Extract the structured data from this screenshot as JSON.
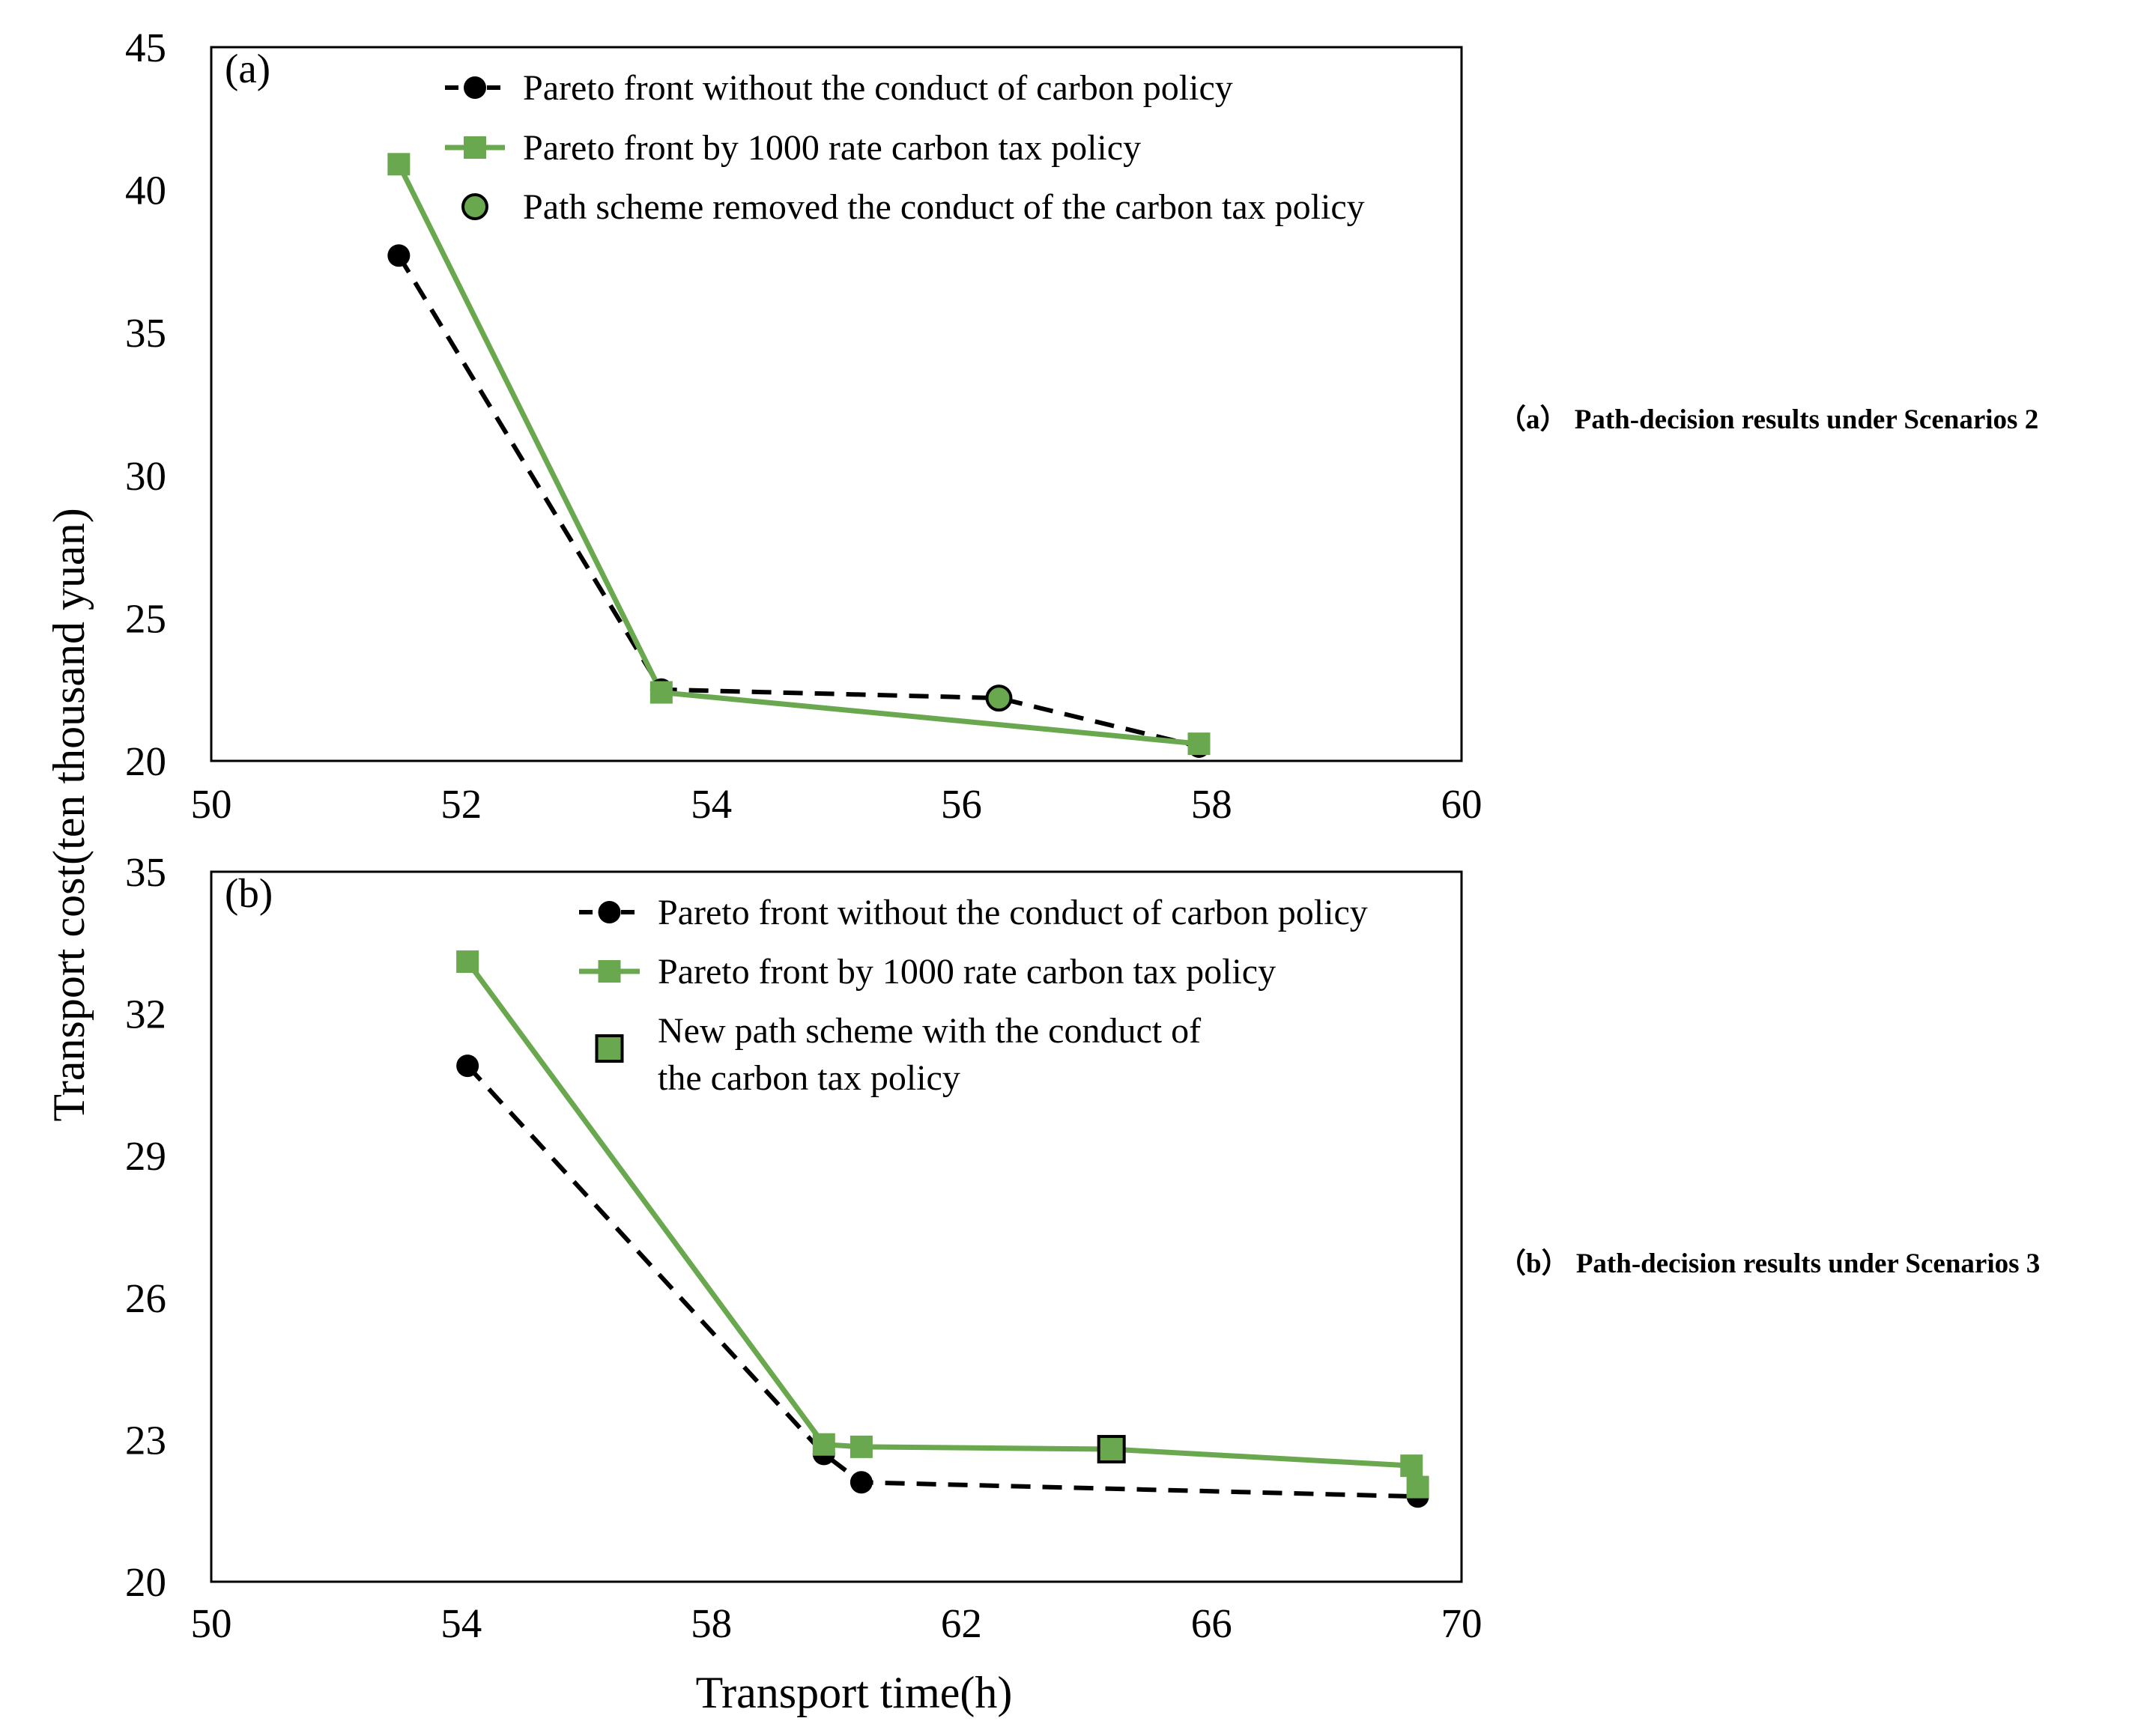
{
  "chart_data": [
    {
      "type": "line",
      "panel_label": "(a)",
      "caption": "（a） Path-decision results under Scenarios 2",
      "ylabel": "Transport cost(ten thousand yuan)",
      "xlabel": "",
      "xlim": [
        50,
        60
      ],
      "ylim": [
        20,
        45
      ],
      "xticks": [
        50,
        52,
        54,
        56,
        58,
        60
      ],
      "yticks": [
        20,
        25,
        30,
        35,
        40,
        45
      ],
      "x_tick_labels": [
        "50",
        "52",
        "54",
        "56",
        "58",
        "60"
      ],
      "y_tick_labels": [
        "20",
        "25",
        "30",
        "35",
        "40",
        "45"
      ],
      "series": [
        {
          "name": "Pareto front without the conduct of carbon policy",
          "style": "dashed-circle",
          "color": "#000000",
          "x": [
            51.5,
            53.6,
            56.3,
            57.9
          ],
          "y": [
            37.7,
            22.5,
            22.2,
            20.5
          ]
        },
        {
          "name": "Pareto front by 1000 rate carbon tax policy",
          "style": "solid-square",
          "color": "#6aa84f",
          "x": [
            51.5,
            53.6,
            57.9
          ],
          "y": [
            40.9,
            22.4,
            20.6
          ]
        },
        {
          "name": "Path scheme removed the conduct of the carbon tax policy",
          "style": "marker-circle-outlined",
          "color": "#6aa84f",
          "x": [
            56.3
          ],
          "y": [
            22.2
          ]
        }
      ]
    },
    {
      "type": "line",
      "panel_label": "(b)",
      "caption": "（b） Path-decision results under Scenarios 3",
      "ylabel": "Transport cost(ten thousand yuan)",
      "xlabel": "Transport time(h)",
      "xlim": [
        50,
        70
      ],
      "ylim": [
        20,
        35
      ],
      "xticks": [
        50,
        54,
        58,
        62,
        66,
        70
      ],
      "yticks": [
        20,
        23,
        26,
        29,
        32,
        35
      ],
      "x_tick_labels": [
        "50",
        "54",
        "58",
        "62",
        "66",
        "70"
      ],
      "y_tick_labels": [
        "20",
        "23",
        "26",
        "29",
        "32",
        "35"
      ],
      "series": [
        {
          "name": "Pareto front without the conduct of carbon policy",
          "style": "dashed-circle",
          "color": "#000000",
          "x": [
            54.1,
            59.8,
            60.4,
            69.3
          ],
          "y": [
            30.9,
            22.7,
            22.1,
            21.8
          ]
        },
        {
          "name": "Pareto front by 1000 rate carbon tax policy",
          "style": "solid-square",
          "color": "#6aa84f",
          "x": [
            54.1,
            59.8,
            60.4,
            64.4,
            69.2,
            69.3
          ],
          "y": [
            33.1,
            22.9,
            22.85,
            22.8,
            22.45,
            22.0
          ]
        },
        {
          "name": "New path scheme with the conduct of the carbon tax policy",
          "name_lines": [
            "New path scheme with the conduct of",
            "the carbon tax policy"
          ],
          "style": "marker-square-outlined",
          "color": "#6aa84f",
          "x": [
            64.4
          ],
          "y": [
            22.8
          ]
        }
      ]
    }
  ]
}
